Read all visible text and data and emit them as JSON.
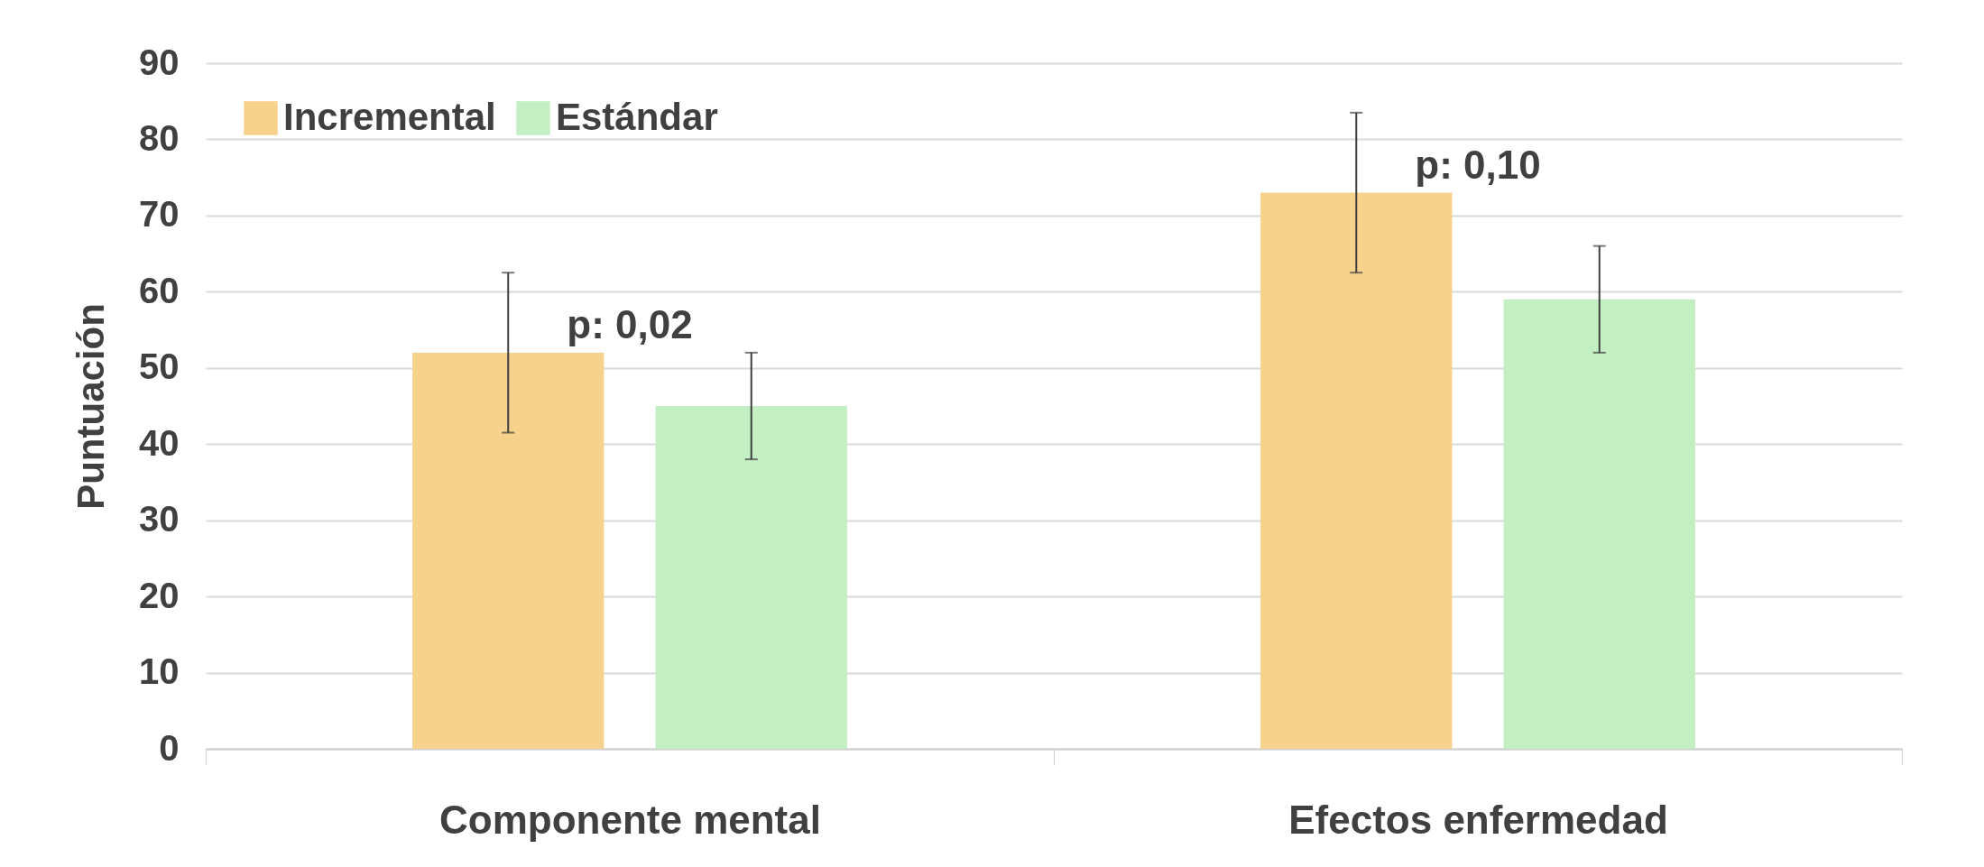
{
  "chart_data": {
    "type": "bar",
    "ylabel": "Puntuación",
    "categories": [
      "Componente mental",
      "Efectos enfermedad"
    ],
    "series": [
      {
        "name": "Incremental",
        "color": "#f7d28c",
        "values": [
          52,
          73
        ],
        "errors": [
          10.5,
          10.5
        ]
      },
      {
        "name": "Estándar",
        "color": "#c3efc3",
        "values": [
          45,
          59
        ],
        "errors": [
          7,
          7
        ]
      }
    ],
    "ylim": [
      0,
      90
    ],
    "yticks": [
      0,
      10,
      20,
      30,
      40,
      50,
      60,
      70,
      80,
      90
    ],
    "grid": "y",
    "legend": "top left",
    "annotations": [
      "p: 0,02",
      "p: 0,10"
    ]
  }
}
